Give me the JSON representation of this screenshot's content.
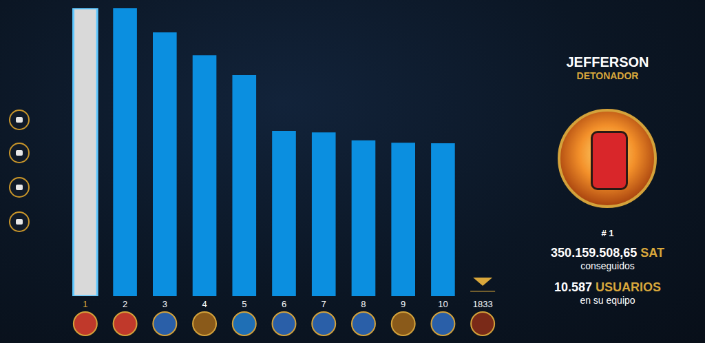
{
  "chart_data": {
    "type": "bar",
    "categories": [
      "1",
      "2",
      "3",
      "4",
      "5",
      "6",
      "7",
      "8",
      "9",
      "10",
      "1833"
    ],
    "values": [
      100,
      100,
      91.6,
      83.7,
      76.8,
      57.4,
      56.9,
      54.1,
      53.3,
      53.1,
      null
    ],
    "colors": [
      "#d9d9d9",
      "#0b8fe0",
      "#0b8fe0",
      "#0b8fe0",
      "#0b8fe0",
      "#0b8fe0",
      "#0b8fe0",
      "#0b8fe0",
      "#0b8fe0",
      "#0b8fe0",
      "#0b8fe0"
    ],
    "ylim": [
      0,
      100
    ],
    "grid": false,
    "tick_labels": "x"
  },
  "panel": {
    "name": "JEFFERSON",
    "title": "DETONADOR",
    "rank": "# 1",
    "amount": "350.159.508,65",
    "amount_unit": "SAT",
    "amount_caption": "conseguidos",
    "team_count": "10.587",
    "team_unit": "USUARIOS",
    "team_caption": "en su equipo"
  }
}
